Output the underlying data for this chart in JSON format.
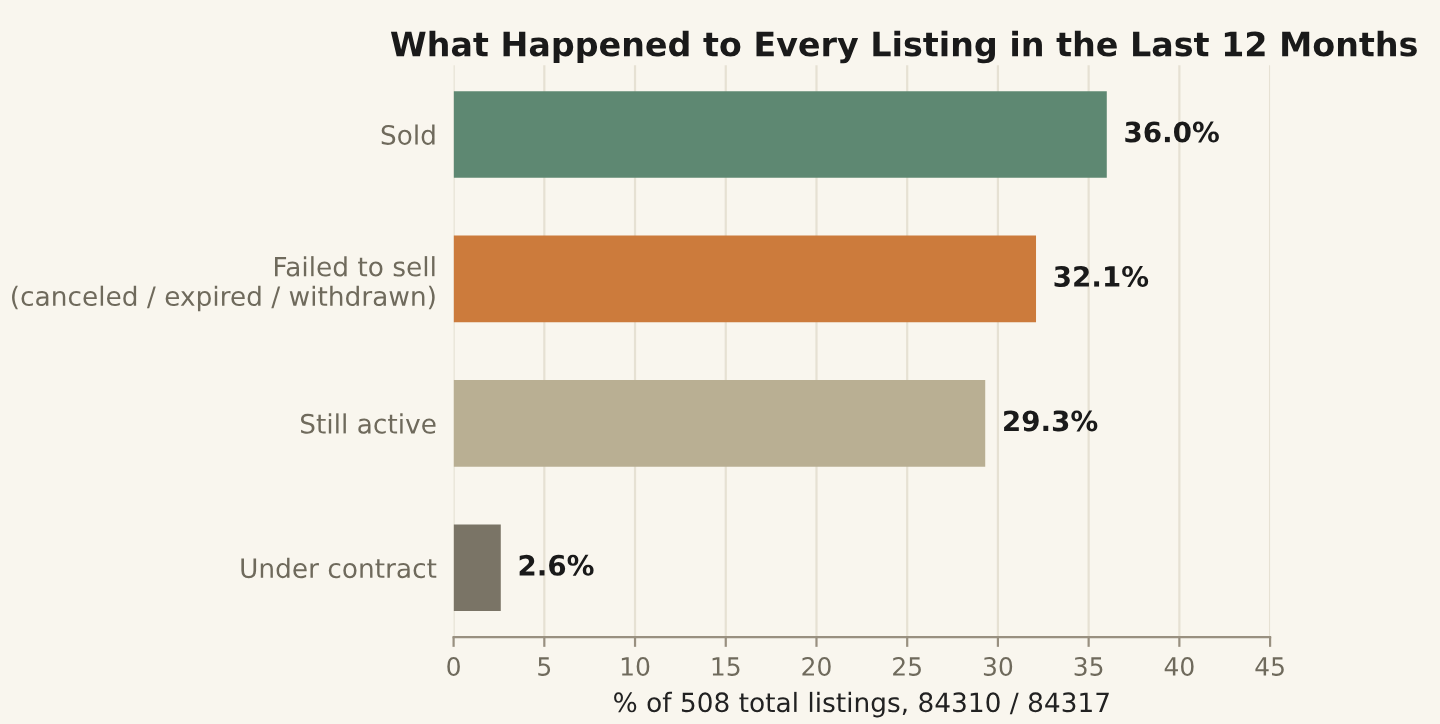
{
  "chart_data": {
    "type": "bar",
    "orientation": "horizontal",
    "title": "What Happened to Every Listing in the Last 12 Months",
    "xlabel": "% of 508 total listings, 84310 / 84317",
    "categories": [
      "Sold",
      "Failed to sell\n(canceled / expired / withdrawn)",
      "Still active",
      "Under contract"
    ],
    "values": [
      36.0,
      32.1,
      29.3,
      2.6
    ],
    "colors": [
      "#5e8872",
      "#cc7b3c",
      "#b9af93",
      "#7a7466"
    ],
    "value_labels": [
      "36.0%",
      "32.1%",
      "29.3%",
      "2.6%"
    ],
    "xlim": [
      0,
      45
    ],
    "xticks": [
      0,
      5,
      10,
      15,
      20,
      25,
      30,
      35,
      40,
      45
    ],
    "grid": "x",
    "legend": false
  }
}
